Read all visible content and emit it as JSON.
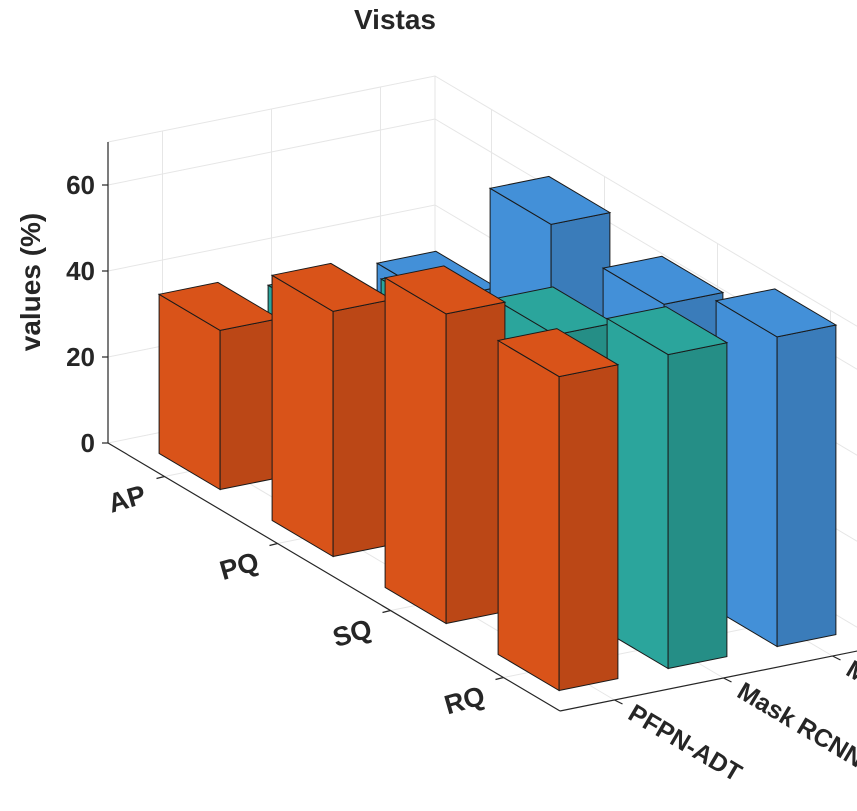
{
  "chart_data": {
    "type": "bar",
    "title": "Vistas",
    "xlabel": "",
    "ylabel": "values (%)",
    "zlim": [
      0,
      70
    ],
    "z_ticks": [
      0,
      20,
      40,
      60
    ],
    "categories": [
      "AP",
      "PQ",
      "SQ",
      "RQ"
    ],
    "series": [
      {
        "name": "PFPN-ADT",
        "color": "#d95319",
        "values": [
          37,
          57,
          72,
          73
        ]
      },
      {
        "name": "Mask RCNN-COCO",
        "color": "#2ba59c",
        "values": [
          34,
          51,
          62,
          73
        ]
      },
      {
        "name": "Mask RCNN",
        "color": "#4390d8",
        "values": [
          34,
          67,
          64,
          72
        ]
      }
    ],
    "grid": true,
    "view": "3d"
  }
}
